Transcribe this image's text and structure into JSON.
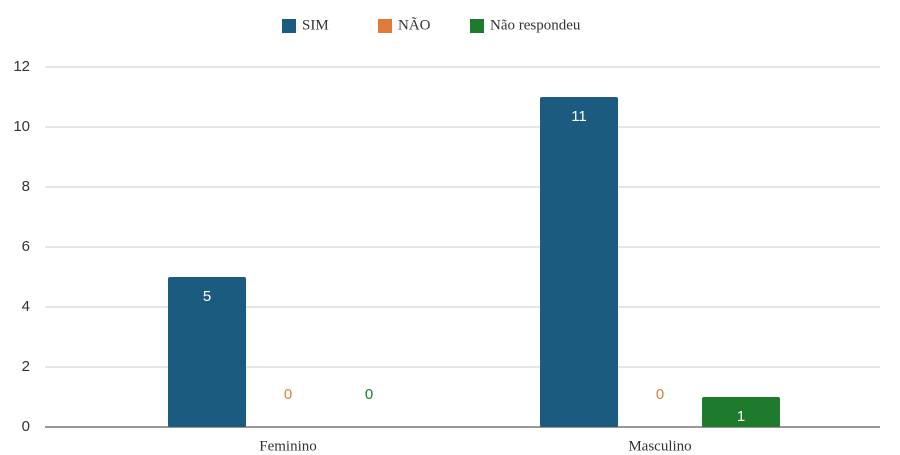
{
  "chart_data": {
    "type": "bar",
    "categories": [
      "Feminino",
      "Masculino"
    ],
    "series": [
      {
        "name": "SIM",
        "color": "#1b5b80",
        "values": [
          5,
          11
        ]
      },
      {
        "name": "NÃO",
        "color": "#e07b39",
        "values": [
          0,
          0
        ]
      },
      {
        "name": "Não respondeu",
        "color": "#1e7a2c",
        "values": [
          0,
          1
        ]
      }
    ],
    "ylim": [
      0,
      12
    ],
    "yticks": [
      0,
      2,
      4,
      6,
      8,
      10,
      12
    ],
    "grid": true,
    "legend": "top"
  }
}
